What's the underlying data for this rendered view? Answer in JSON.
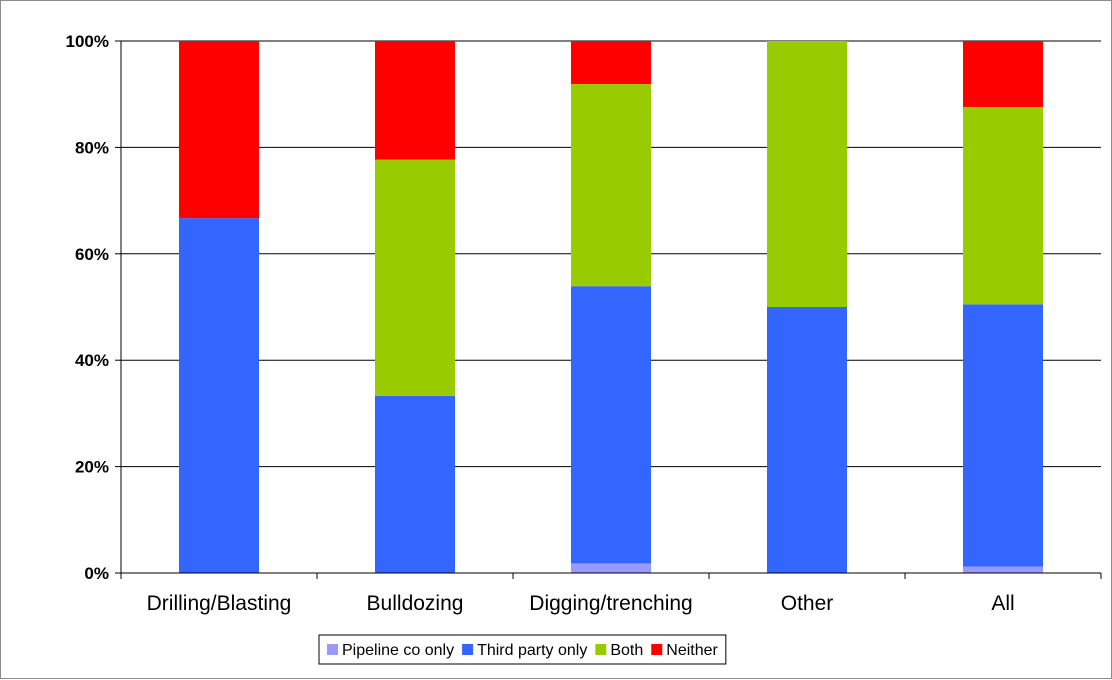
{
  "chart_data": {
    "type": "bar",
    "stacked": true,
    "categories": [
      "Drilling/Blasting",
      "Bulldozing",
      "Digging/trenching",
      "Other",
      "All"
    ],
    "series": [
      {
        "name": "Pipeline co only",
        "color": "#9999ff",
        "values": [
          0,
          0,
          1.8,
          0,
          1.2
        ]
      },
      {
        "name": "Third party only",
        "color": "#3366ff",
        "values": [
          66.7,
          33.3,
          52.1,
          50.0,
          49.3
        ]
      },
      {
        "name": "Both",
        "color": "#99cc00",
        "values": [
          0,
          44.4,
          38.0,
          50.0,
          37.1
        ]
      },
      {
        "name": "Neither",
        "color": "#ff0000",
        "values": [
          33.3,
          22.3,
          8.1,
          0,
          12.4
        ]
      }
    ],
    "yticks": [
      "0%",
      "20%",
      "40%",
      "60%",
      "80%",
      "100%"
    ],
    "ylim": [
      0,
      100
    ],
    "grid": true,
    "legend_position": "bottom"
  }
}
